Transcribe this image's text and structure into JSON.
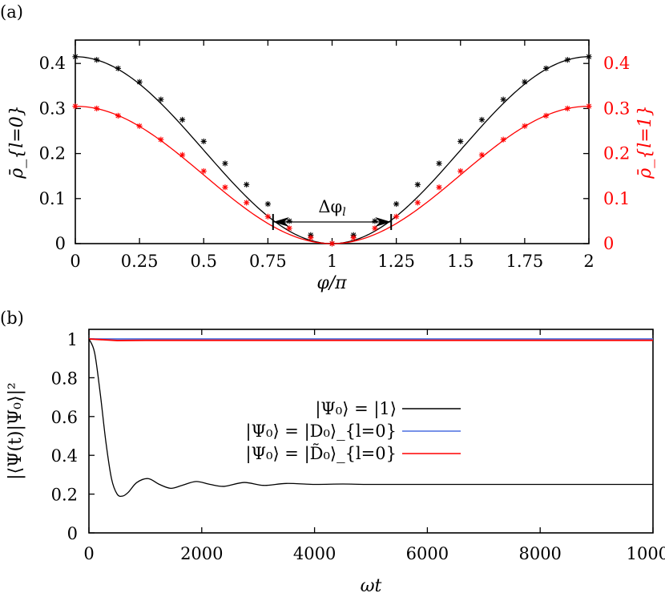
{
  "panels": {
    "a": {
      "label": "(a)"
    },
    "b": {
      "label": "(b)"
    }
  },
  "chart_data": [
    {
      "panel": "(a)",
      "type": "line",
      "title": "",
      "xlabel": "φ/π",
      "ylabel": "ρ̄_{l=0}",
      "y2label": "ρ̄_{l=1}",
      "xlim": [
        0,
        2
      ],
      "ylim": [
        0,
        0.45
      ],
      "y2lim": [
        0,
        0.45
      ],
      "xticks": [
        "0",
        "0.25",
        "0.5",
        "0.75",
        "1",
        "1.25",
        "1.5",
        "1.75",
        "2"
      ],
      "yticks": [
        "0",
        "0.1",
        "0.2",
        "0.3",
        "0.4"
      ],
      "y2ticks": [
        "0",
        "0.1",
        "0.2",
        "0.3",
        "0.4"
      ],
      "y2color": "#ff0000",
      "grid": false,
      "annotation": {
        "text": "Δφ_l",
        "x_from": 0.77,
        "x_to": 1.23,
        "y": 0.048
      },
      "series": [
        {
          "name": "ρ̄_{l=0}",
          "color": "#000000",
          "marker": "asterisk",
          "axis": "left",
          "peak": 0.415,
          "x": [
            0,
            0.0833,
            0.1667,
            0.25,
            0.3333,
            0.4167,
            0.5,
            0.5833,
            0.6667,
            0.75,
            0.8333,
            0.9167,
            1.0,
            1.0833,
            1.1667,
            1.25,
            1.3333,
            1.4167,
            1.5,
            1.5833,
            1.6667,
            1.75,
            1.8333,
            1.9167,
            2.0
          ],
          "values": [
            0.415,
            0.408,
            0.389,
            0.359,
            0.32,
            0.275,
            0.227,
            0.178,
            0.131,
            0.088,
            0.05,
            0.019,
            0.0,
            0.019,
            0.05,
            0.088,
            0.131,
            0.178,
            0.227,
            0.275,
            0.32,
            0.359,
            0.389,
            0.408,
            0.415
          ]
        },
        {
          "name": "ρ̄_{l=1}",
          "color": "#ff0000",
          "marker": "asterisk",
          "axis": "right",
          "peak": 0.305,
          "x": [
            0,
            0.0833,
            0.1667,
            0.25,
            0.3333,
            0.4167,
            0.5,
            0.5833,
            0.6667,
            0.75,
            0.8333,
            0.9167,
            1.0,
            1.0833,
            1.1667,
            1.25,
            1.3333,
            1.4167,
            1.5,
            1.5833,
            1.6667,
            1.75,
            1.8333,
            1.9167,
            2.0
          ],
          "values": [
            0.305,
            0.3,
            0.284,
            0.261,
            0.231,
            0.197,
            0.161,
            0.125,
            0.091,
            0.06,
            0.034,
            0.013,
            0.0,
            0.013,
            0.034,
            0.06,
            0.091,
            0.125,
            0.161,
            0.197,
            0.231,
            0.261,
            0.284,
            0.3,
            0.305
          ]
        }
      ]
    },
    {
      "panel": "(b)",
      "type": "line",
      "title": "",
      "xlabel": "ωt",
      "ylabel": "|⟨Ψ(t)|Ψ₀⟩|²",
      "xlim": [
        0,
        10000
      ],
      "ylim": [
        0,
        1.05
      ],
      "xticks": [
        "0",
        "2000",
        "4000",
        "6000",
        "8000",
        "10000"
      ],
      "yticks": [
        "0",
        "0.2",
        "0.4",
        "0.6",
        "0.8",
        "1"
      ],
      "grid": false,
      "legend_position": "center-right",
      "series": [
        {
          "name": "|Ψ₀⟩ = |1⟩",
          "color": "#000000",
          "x": [
            0,
            100,
            200,
            300,
            400,
            500,
            600,
            700,
            850,
            1050,
            1250,
            1450,
            1650,
            1900,
            2150,
            2400,
            2750,
            3100,
            3500,
            4000,
            4500,
            5000,
            6000,
            7000,
            8000,
            9000,
            10000
          ],
          "values": [
            1.0,
            0.93,
            0.72,
            0.47,
            0.28,
            0.2,
            0.19,
            0.21,
            0.26,
            0.28,
            0.25,
            0.23,
            0.245,
            0.265,
            0.25,
            0.24,
            0.26,
            0.245,
            0.255,
            0.25,
            0.252,
            0.25,
            0.25,
            0.25,
            0.25,
            0.25,
            0.25
          ]
        },
        {
          "name": "|Ψ₀⟩ = |D₀⟩_{l=0}",
          "color": "#4a6fe0",
          "x": [
            0,
            10000
          ],
          "values": [
            1.0,
            1.0
          ]
        },
        {
          "name": "|Ψ₀⟩ = |D̃₀⟩_{l=0}",
          "color": "#ff0000",
          "x": [
            0,
            500,
            1000,
            10000
          ],
          "values": [
            1.0,
            0.992,
            0.993,
            0.993
          ]
        }
      ]
    }
  ]
}
